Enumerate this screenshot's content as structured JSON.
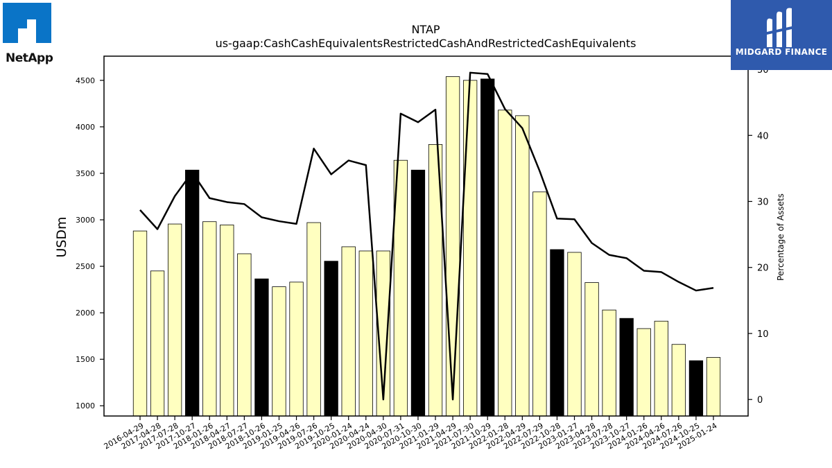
{
  "logos": {
    "left_brand": "NetApp",
    "right_brand": "MIDGARD FINANCE"
  },
  "chart_data": {
    "type": "bar",
    "title": "NTAP",
    "subtitle": "us-gaap:CashCashEquivalentsRestrictedCashAndRestrictedCashEquivalents",
    "ylabel": "USDm",
    "y2label": "Percentage of Assets",
    "ylim": [
      890,
      4760
    ],
    "y2lim": [
      -2.5,
      52
    ],
    "yticks": [
      1000,
      1500,
      2000,
      2500,
      3000,
      3500,
      4000,
      4500
    ],
    "y2ticks": [
      0,
      10,
      20,
      30,
      40,
      50
    ],
    "categories": [
      "2016-04-29",
      "2017-04-28",
      "2017-07-28",
      "2017-10-27",
      "2018-01-26",
      "2018-04-27",
      "2018-07-27",
      "2018-10-26",
      "2019-01-25",
      "2019-04-26",
      "2019-07-26",
      "2019-10-25",
      "2020-01-24",
      "2020-04-24",
      "2020-04-30",
      "2020-07-31",
      "2020-10-30",
      "2021-01-29",
      "2021-04-29",
      "2021-07-30",
      "2021-10-29",
      "2022-01-28",
      "2022-04-29",
      "2022-07-29",
      "2022-10-28",
      "2023-01-27",
      "2023-04-28",
      "2023-07-28",
      "2023-10-27",
      "2024-01-26",
      "2024-04-26",
      "2024-07-26",
      "2024-10-25",
      "2025-01-24"
    ],
    "series": [
      {
        "type": "bar",
        "values": [
          2880,
          2450,
          2955,
          3535,
          2980,
          2945,
          2635,
          2365,
          2280,
          2330,
          2970,
          2555,
          2710,
          2665,
          2665,
          3640,
          3535,
          3810,
          4540,
          4500,
          4515,
          4180,
          4120,
          3300,
          2680,
          2650,
          2325,
          2030,
          1940,
          1830,
          1910,
          1660,
          1485,
          1520
        ],
        "highlight": [
          false,
          false,
          false,
          true,
          false,
          false,
          false,
          true,
          false,
          false,
          false,
          true,
          false,
          false,
          false,
          false,
          true,
          false,
          false,
          false,
          true,
          false,
          false,
          false,
          true,
          false,
          false,
          false,
          true,
          false,
          false,
          false,
          true,
          false
        ]
      },
      {
        "type": "line",
        "axis": "right",
        "values": [
          28.7,
          25.8,
          30.8,
          34.4,
          30.5,
          29.9,
          29.6,
          27.6,
          27.0,
          26.6,
          38.0,
          34.1,
          36.2,
          35.5,
          0.0,
          43.3,
          42.0,
          43.9,
          0.0,
          49.5,
          49.3,
          44.0,
          41.1,
          34.6,
          27.4,
          27.3,
          23.7,
          21.9,
          21.4,
          19.5,
          19.3,
          17.8,
          16.5,
          16.9
        ]
      }
    ],
    "colors": {
      "bar": "#ffffc0",
      "highlight_bar": "#000000",
      "line": "#000000"
    },
    "grid": false
  }
}
